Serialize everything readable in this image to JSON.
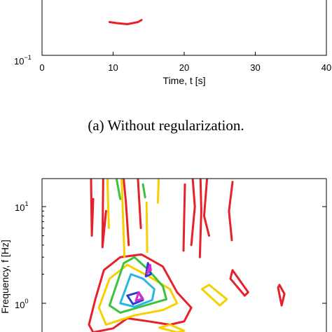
{
  "chart_data": [
    {
      "type": "contour",
      "xlabel": "Time, t [s]",
      "ylabel": "",
      "x_ticks": [
        "0",
        "10",
        "20",
        "30",
        "40"
      ],
      "y_ticks": [
        {
          "base": "10",
          "exp": "−1"
        }
      ],
      "xlim": [
        0,
        40
      ],
      "yscale": "log",
      "caption": "(a) Without regularization.",
      "series": [
        {
          "color": "#e8202a",
          "contours": [
            [
              [
                9.5,
                0.2
              ],
              [
                10.5,
                0.195
              ],
              [
                12.0,
                0.19
              ],
              [
                13.5,
                0.2
              ],
              [
                14.0,
                0.21
              ]
            ]
          ]
        }
      ]
    },
    {
      "type": "contour",
      "xlabel": "",
      "ylabel": "Frequency, f [Hz]",
      "y_ticks": [
        {
          "base": "10",
          "exp": "1"
        },
        {
          "base": "10",
          "exp": "0"
        }
      ],
      "xlim": [
        0,
        40
      ],
      "yscale": "log",
      "series": [
        {
          "color": "#e8202a",
          "contours": [
            [
              [
                6.9,
                19
              ],
              [
                7.0,
                5.0
              ],
              [
                7.2,
                12.0
              ]
            ],
            [
              [
                8.6,
                19
              ],
              [
                8.5,
                3.8
              ],
              [
                9.0,
                9.0
              ]
            ],
            [
              [
                11.5,
                19
              ],
              [
                11.8,
                11.0
              ],
              [
                12.2,
                4.0
              ]
            ],
            [
              [
                13.5,
                19
              ],
              [
                13.9,
                6.0
              ]
            ],
            [
              [
                20.1,
                17
              ],
              [
                20.0,
                8.0
              ],
              [
                19.9,
                3.5
              ]
            ],
            [
              [
                21.2,
                19
              ],
              [
                21.5,
                10.0
              ],
              [
                21.0,
                4.0
              ]
            ],
            [
              [
                22.3,
                19
              ],
              [
                22.4,
                9.0
              ],
              [
                22.2,
                3.0
              ]
            ],
            [
              [
                23.2,
                19
              ],
              [
                22.8,
                8.0
              ],
              [
                23.5,
                5.0
              ]
            ],
            [
              [
                26.8,
                18
              ],
              [
                26.3,
                9.0
              ],
              [
                26.7,
                4.5
              ]
            ],
            [
              [
                8.7,
                2.2
              ],
              [
                7.5,
                1.1
              ],
              [
                6.6,
                0.6
              ],
              [
                7.2,
                0.5
              ],
              [
                10.0,
                0.55
              ],
              [
                12.0,
                0.7
              ],
              [
                15.0,
                0.65
              ],
              [
                18.0,
                0.6
              ],
              [
                20.0,
                0.65
              ],
              [
                21.0,
                0.9
              ],
              [
                19.0,
                1.3
              ],
              [
                17.0,
                2.4
              ],
              [
                14.0,
                3.2
              ],
              [
                11.0,
                3.0
              ],
              [
                8.7,
                2.2
              ]
            ],
            [
              [
                26.5,
                1.8
              ],
              [
                28.5,
                1.2
              ],
              [
                29.0,
                1.3
              ],
              [
                26.8,
                2.2
              ],
              [
                26.5,
                1.8
              ]
            ],
            [
              [
                33.2,
                1.45
              ],
              [
                33.7,
                0.95
              ],
              [
                34.1,
                1.25
              ],
              [
                33.4,
                1.55
              ],
              [
                33.2,
                1.45
              ]
            ]
          ]
        },
        {
          "color": "#f6d000",
          "contours": [
            [
              [
                9.2,
                19
              ],
              [
                9.4,
                6.0
              ]
            ],
            [
              [
                11.2,
                19
              ],
              [
                11.6,
                3.0
              ]
            ],
            [
              [
                14.7,
                11.0
              ],
              [
                14.8,
                3.4
              ]
            ],
            [
              [
                16.4,
                19
              ],
              [
                16.3,
                11.0
              ]
            ],
            [
              [
                9.5,
                1.8
              ],
              [
                8.0,
                0.9
              ],
              [
                9.0,
                0.6
              ],
              [
                13.0,
                0.75
              ],
              [
                17.0,
                0.85
              ],
              [
                19.0,
                1.0
              ],
              [
                18.0,
                1.4
              ],
              [
                15.0,
                1.9
              ],
              [
                12.0,
                2.5
              ],
              [
                9.5,
                1.8
              ]
            ],
            [
              [
                22.5,
                1.4
              ],
              [
                25.0,
                0.95
              ],
              [
                26.0,
                1.1
              ],
              [
                23.5,
                1.55
              ],
              [
                22.5,
                1.4
              ]
            ],
            [
              [
                16.5,
                0.56
              ],
              [
                19.0,
                0.5
              ],
              [
                20.0,
                0.52
              ],
              [
                18.0,
                0.6
              ],
              [
                16.5,
                0.56
              ]
            ]
          ]
        },
        {
          "color": "#3cc23c",
          "contours": [
            [
              [
                10.5,
                19
              ],
              [
                11.0,
                12.0
              ]
            ],
            [
              [
                14.2,
                17
              ],
              [
                14.5,
                12.5
              ]
            ],
            [
              [
                11.5,
                2.6
              ],
              [
                9.5,
                0.95
              ],
              [
                11.0,
                0.8
              ],
              [
                14.5,
                0.95
              ],
              [
                17.5,
                1.1
              ],
              [
                17.0,
                1.5
              ],
              [
                15.0,
                2.2
              ],
              [
                13.0,
                3.0
              ],
              [
                11.5,
                2.6
              ]
            ]
          ]
        },
        {
          "color": "#29b6e6",
          "contours": [
            [
              [
                12.5,
                2.0
              ],
              [
                11.0,
                1.0
              ],
              [
                13.0,
                0.92
              ],
              [
                15.5,
                1.08
              ],
              [
                15.8,
                1.4
              ],
              [
                14.2,
                1.8
              ],
              [
                12.5,
                2.0
              ]
            ]
          ]
        },
        {
          "color": "#2a3fd0",
          "contours": [
            [
              [
                12.0,
                1.2
              ],
              [
                12.8,
                0.98
              ],
              [
                14.2,
                1.08
              ],
              [
                13.6,
                1.3
              ],
              [
                12.0,
                1.2
              ]
            ],
            [
              [
                14.9,
                2.6
              ],
              [
                14.6,
                1.9
              ],
              [
                15.3,
                2.0
              ],
              [
                14.9,
                2.6
              ]
            ]
          ]
        },
        {
          "color": "#d62bd0",
          "contours": [
            [
              [
                13.6,
                1.3
              ],
              [
                13.2,
                1.06
              ],
              [
                14.2,
                1.12
              ],
              [
                13.6,
                1.3
              ]
            ],
            [
              [
                15.2,
                2.5
              ],
              [
                14.8,
                2.05
              ],
              [
                15.3,
                2.2
              ],
              [
                15.2,
                2.5
              ]
            ]
          ]
        }
      ]
    }
  ]
}
